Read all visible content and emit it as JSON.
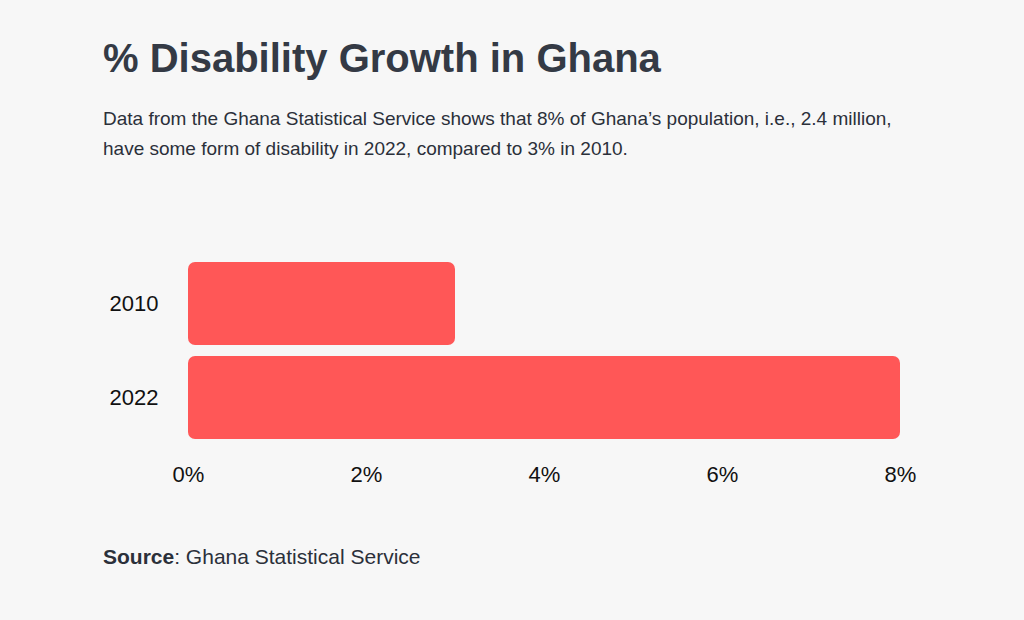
{
  "chart_data": {
    "type": "bar",
    "orientation": "horizontal",
    "title": "% Disability Growth in Ghana",
    "subtitle": "Data from the Ghana Statistical Service shows that 8% of Ghana’s population, i.e., 2.4 million, have some form of disability in 2022, compared to 3% in 2010.",
    "source": "Source: Ghana Statistical Service",
    "categories": [
      "2010",
      "2022"
    ],
    "values": [
      3,
      8
    ],
    "color": "#ff5757",
    "xlim": [
      0,
      8
    ],
    "xticks": [
      {
        "value": 0,
        "label": "0%"
      },
      {
        "value": 2,
        "label": "2%"
      },
      {
        "value": 4,
        "label": "4%"
      },
      {
        "value": 6,
        "label": "6%"
      },
      {
        "value": 8,
        "label": "8%"
      }
    ],
    "grid": false
  }
}
